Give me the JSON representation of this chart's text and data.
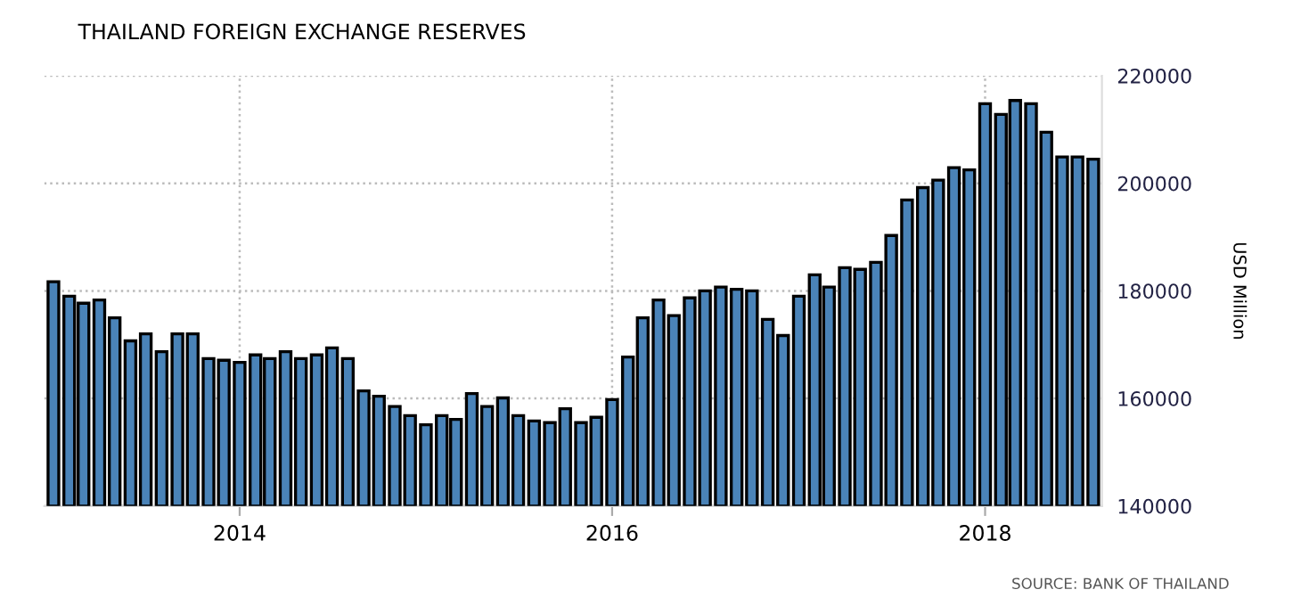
{
  "chart_data": {
    "type": "bar",
    "title": "THAILAND FOREIGN EXCHANGE RESERVES",
    "ylabel": "USD Million",
    "x": [
      "2013-01",
      "2013-02",
      "2013-03",
      "2013-04",
      "2013-05",
      "2013-06",
      "2013-07",
      "2013-08",
      "2013-09",
      "2013-10",
      "2013-11",
      "2013-12",
      "2014-01",
      "2014-02",
      "2014-03",
      "2014-04",
      "2014-05",
      "2014-06",
      "2014-07",
      "2014-08",
      "2014-09",
      "2014-10",
      "2014-11",
      "2014-12",
      "2015-01",
      "2015-02",
      "2015-03",
      "2015-04",
      "2015-05",
      "2015-06",
      "2015-07",
      "2015-08",
      "2015-09",
      "2015-10",
      "2015-11",
      "2015-12",
      "2016-01",
      "2016-02",
      "2016-03",
      "2016-04",
      "2016-05",
      "2016-06",
      "2016-07",
      "2016-08",
      "2016-09",
      "2016-10",
      "2016-11",
      "2016-12",
      "2017-01",
      "2017-02",
      "2017-03",
      "2017-04",
      "2017-05",
      "2017-06",
      "2017-07",
      "2017-08",
      "2017-09",
      "2017-10",
      "2017-11",
      "2017-12",
      "2018-01",
      "2018-02",
      "2018-03",
      "2018-04",
      "2018-05",
      "2018-06",
      "2018-07",
      "2018-08"
    ],
    "values": [
      181700,
      179000,
      177700,
      178300,
      175000,
      170700,
      172000,
      168700,
      172000,
      172000,
      167400,
      167100,
      166700,
      168100,
      167400,
      168700,
      167400,
      168100,
      169400,
      167400,
      161400,
      160400,
      158500,
      156800,
      155100,
      156800,
      156100,
      160900,
      158500,
      160100,
      156800,
      155800,
      155500,
      158100,
      155500,
      156500,
      159800,
      167700,
      175000,
      178300,
      175400,
      178700,
      180000,
      180700,
      180300,
      180000,
      174700,
      171700,
      179000,
      183000,
      180700,
      184300,
      184000,
      185300,
      190300,
      196900,
      199200,
      200600,
      202900,
      202500,
      214800,
      212800,
      215400,
      214800,
      209500,
      204900,
      204900,
      204500
    ],
    "color": "#4a83b8",
    "xlim": [
      "2012-12-14",
      "2018-08-18"
    ],
    "xticks": [
      "2014",
      "2016",
      "2018"
    ],
    "ylim": [
      140000,
      220000
    ],
    "yticks": [
      140000,
      160000,
      180000,
      200000,
      220000
    ],
    "grid": true,
    "annotations": [
      "SOURCE: BANK OF THAILAND"
    ]
  }
}
